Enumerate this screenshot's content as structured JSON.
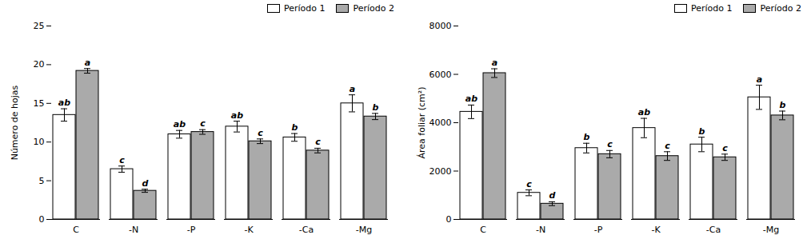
{
  "chart_data": [
    {
      "type": "bar",
      "categories": [
        "C",
        "-N",
        "-P",
        "-K",
        "-Ca",
        "-Mg"
      ],
      "series": [
        {
          "name": "Período 1",
          "color": "#ffffff",
          "values": [
            13.5,
            6.5,
            11.0,
            12.0,
            10.6,
            15.0
          ],
          "errors": [
            0.8,
            0.4,
            0.5,
            0.7,
            0.5,
            1.1
          ],
          "annotations": [
            "ab",
            "c",
            "ab",
            "ab",
            "b",
            "a"
          ]
        },
        {
          "name": "Período 2",
          "color": "#aaaaaa",
          "values": [
            19.2,
            3.7,
            11.3,
            10.1,
            8.9,
            13.3
          ],
          "errors": [
            0.3,
            0.2,
            0.3,
            0.3,
            0.3,
            0.4
          ],
          "annotations": [
            "a",
            "d",
            "c",
            "c",
            "c",
            "b"
          ]
        }
      ],
      "ylabel": "Número de hojas",
      "ylim": [
        0,
        25
      ],
      "yticks": [
        0,
        5,
        10,
        15,
        20,
        25
      ],
      "legend": "upper right"
    },
    {
      "type": "bar",
      "categories": [
        "C",
        "-N",
        "-P",
        "-K",
        "-Ca",
        "-Mg"
      ],
      "series": [
        {
          "name": "Período 1",
          "color": "#ffffff",
          "values": [
            4450,
            1100,
            2950,
            3780,
            3100,
            5050
          ],
          "errors": [
            280,
            120,
            200,
            400,
            300,
            500
          ],
          "annotations": [
            "ab",
            "c",
            "b",
            "ab",
            "b",
            "a"
          ]
        },
        {
          "name": "Período 2",
          "color": "#aaaaaa",
          "values": [
            6050,
            650,
            2700,
            2620,
            2570,
            4300
          ],
          "errors": [
            180,
            80,
            150,
            180,
            130,
            180
          ],
          "annotations": [
            "a",
            "d",
            "c",
            "c",
            "c",
            "b"
          ]
        }
      ],
      "ylabel": "Área foliar (cm²)",
      "ylim": [
        0,
        8000
      ],
      "yticks": [
        0,
        2000,
        4000,
        6000,
        8000
      ],
      "legend": "upper right"
    }
  ]
}
